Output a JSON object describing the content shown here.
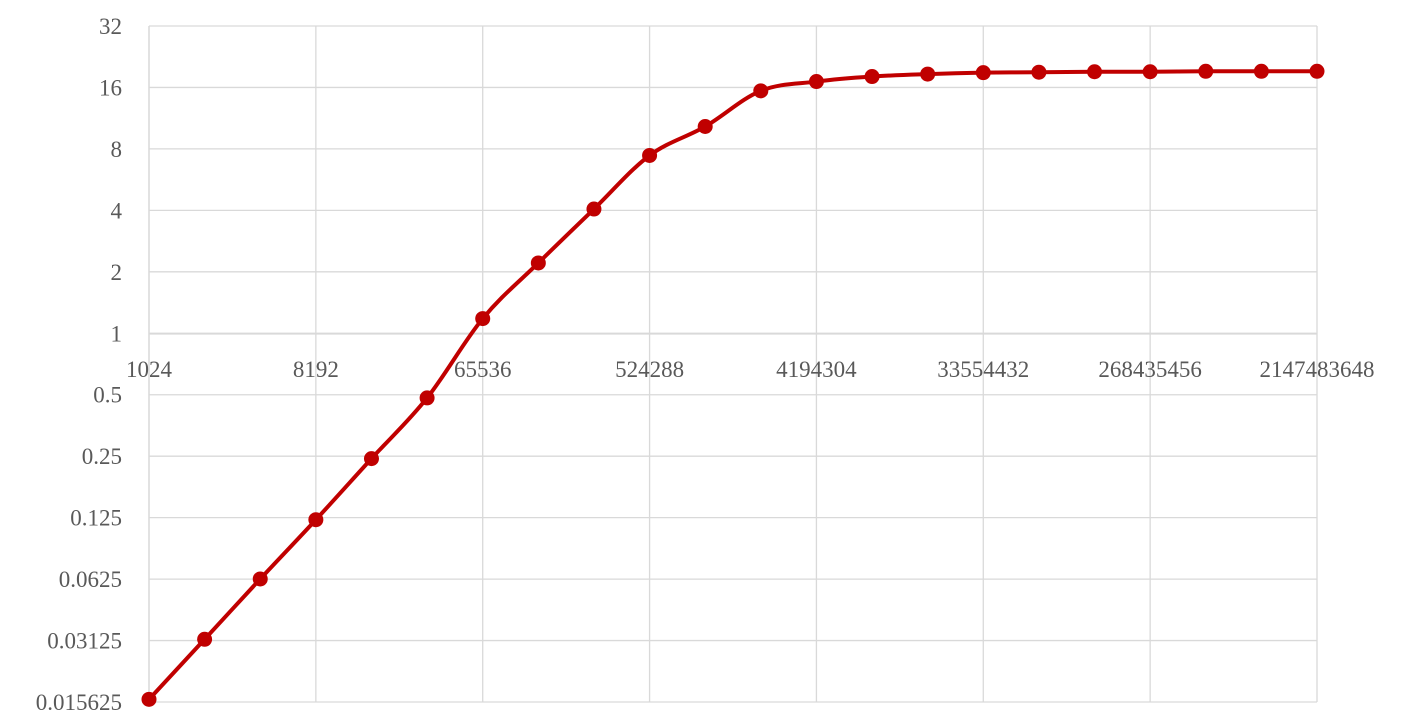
{
  "chart_data": {
    "type": "line",
    "title": "",
    "xlabel": "",
    "ylabel": "",
    "x_scale": "log2",
    "y_scale": "log2",
    "xlim": [
      1024,
      2147483648
    ],
    "ylim": [
      0.015625,
      32
    ],
    "x_ticks": [
      "1024",
      "8192",
      "65536",
      "524288",
      "4194304",
      "33554432",
      "268435456",
      "2147483648"
    ],
    "y_ticks": [
      "0.015625",
      "0.03125",
      "0.0625",
      "0.125",
      "0.25",
      "0.5",
      "1",
      "2",
      "4",
      "8",
      "16",
      "32"
    ],
    "grid": true,
    "legend": "none",
    "color": "#c00000",
    "series": [
      {
        "x": [
          1024,
          2048,
          4096,
          8192,
          16384,
          32768,
          65536,
          131072,
          262144,
          524288,
          1048576,
          2097152,
          4194304,
          8388608,
          16777216,
          33554432,
          67108864,
          134217728,
          268435456,
          536870912,
          1073741824,
          2147483648
        ],
        "y": [
          0.0161,
          0.0317,
          0.0626,
          0.1221,
          0.2432,
          0.4824,
          1.18,
          2.21,
          4.06,
          7.43,
          10.3,
          15.4,
          17.1,
          18.1,
          18.6,
          18.9,
          19.0,
          19.1,
          19.1,
          19.2,
          19.2,
          19.2
        ]
      }
    ]
  }
}
